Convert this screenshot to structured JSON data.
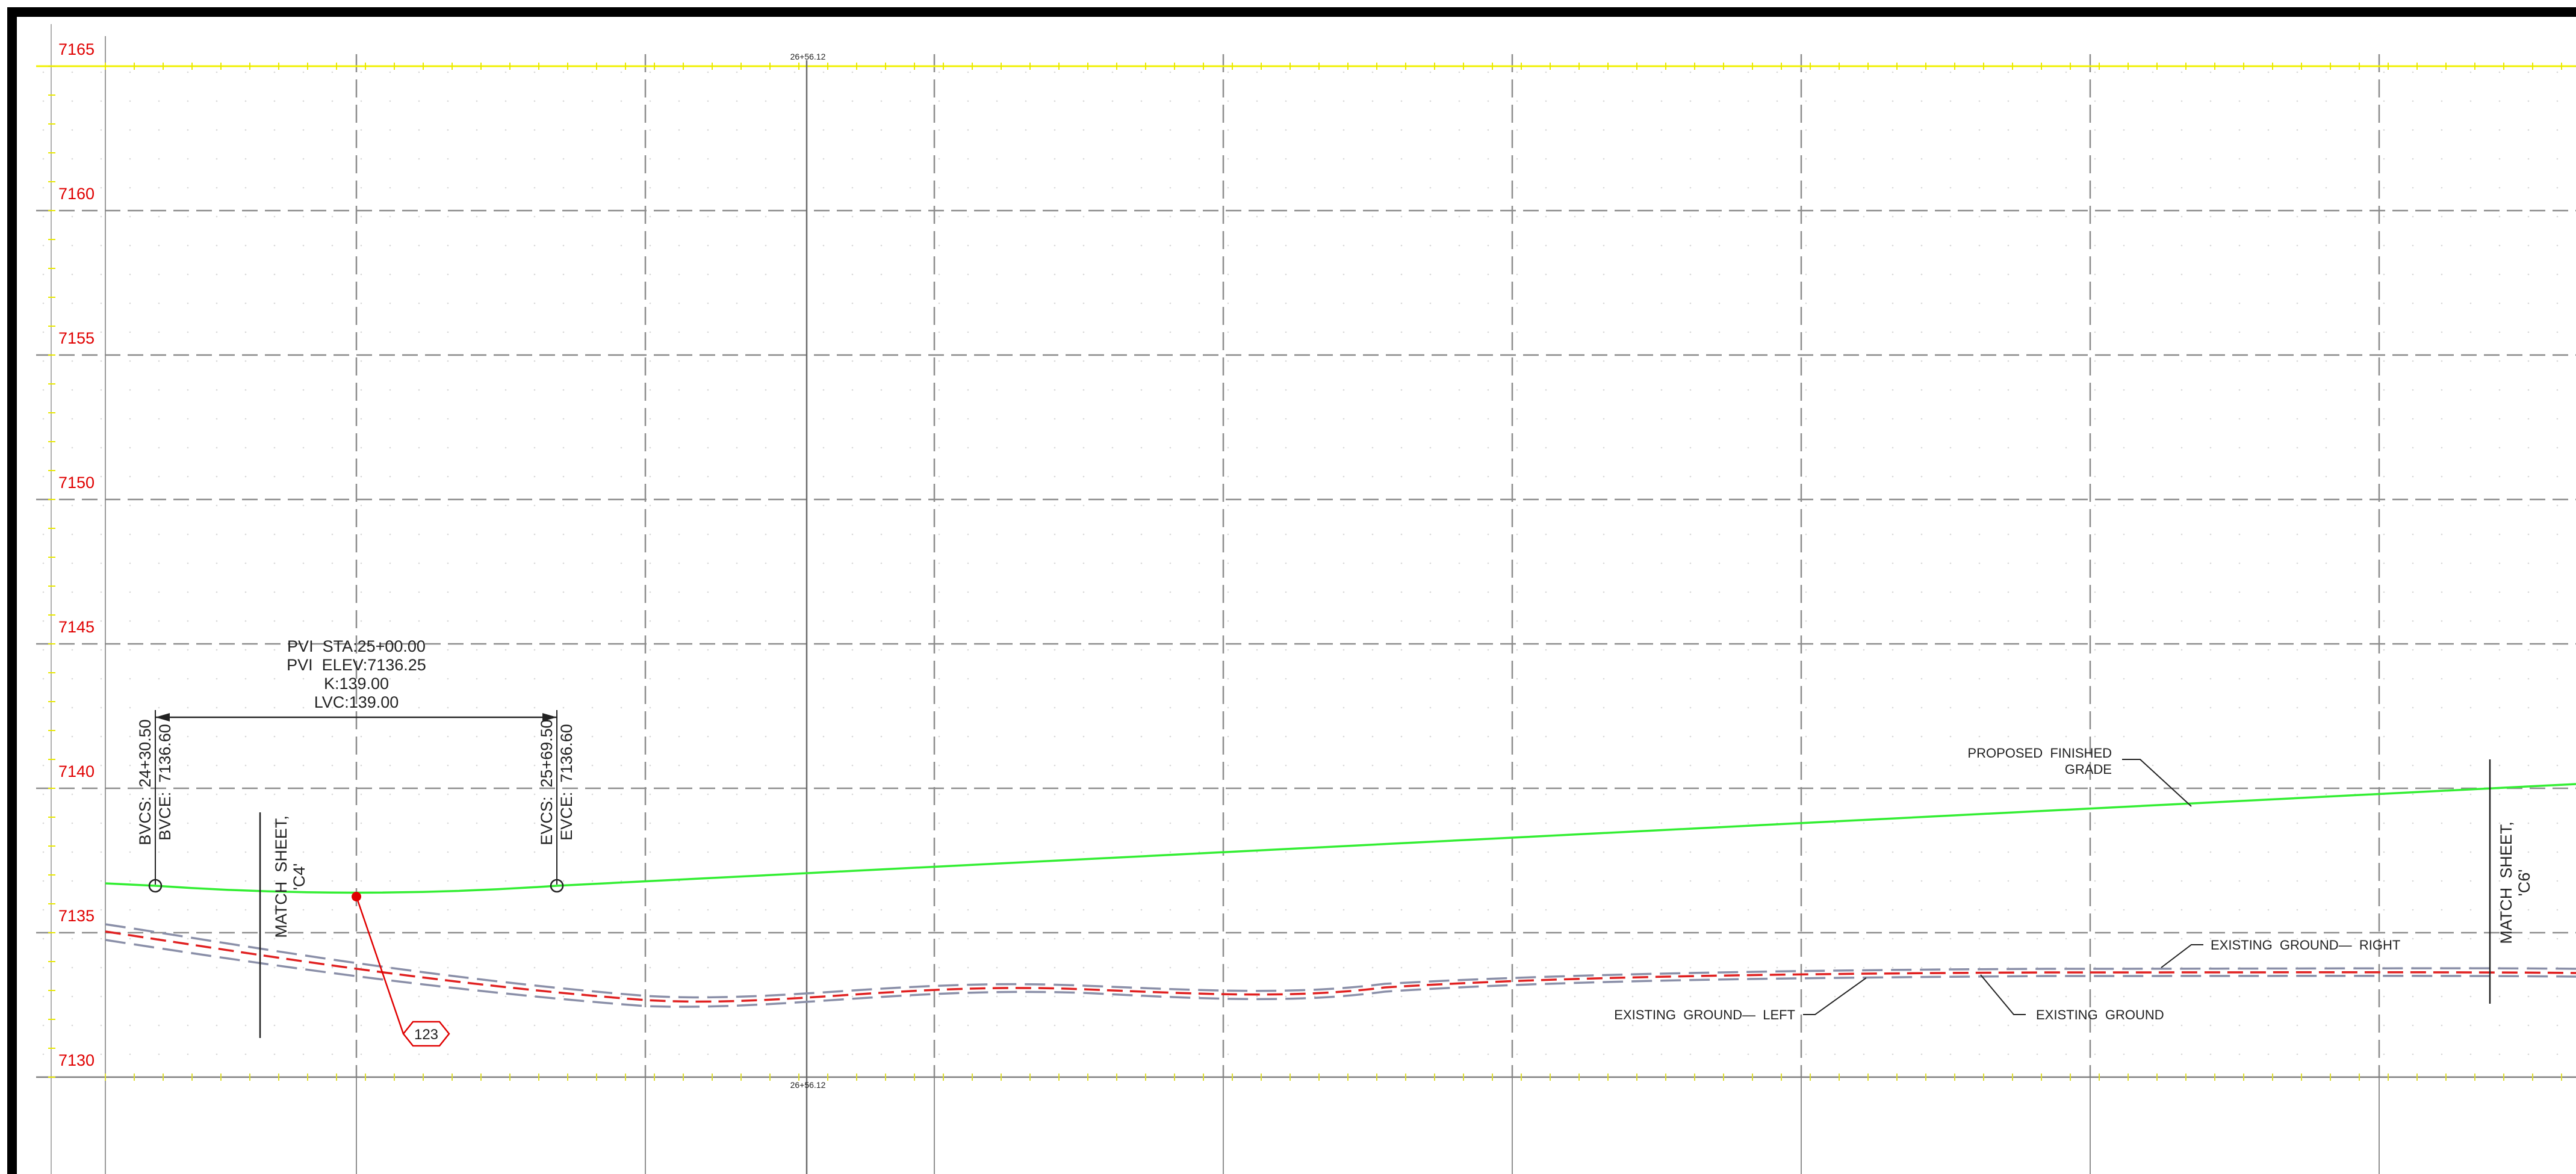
{
  "station_marker": {
    "label": "26+56.12"
  },
  "elevation_labels": [
    "7165",
    "7160",
    "7155",
    "7150",
    "7145",
    "7140",
    "7135",
    "7130"
  ],
  "curve": {
    "pvi_sta": "PVI  STA:25+00.00",
    "pvi_elev": "PVI  ELEV:7136.25",
    "k": "K:139.00",
    "lvc": "LVC:139.00",
    "bvcs": "BVCS:  24+30.50",
    "bvce": "BVCE:  7136.60",
    "evcs": "EVCS:  25+69.50",
    "evce": "EVCE:  7136.60"
  },
  "match_left": {
    "line1": "MATCH  SHEET,",
    "line2": "'C4'"
  },
  "match_right": {
    "line1": "MATCH  SHEET,",
    "line2": "'C6'"
  },
  "callouts": {
    "proposed_line1": "PROPOSED  FINISHED",
    "proposed_line2": "GRADE",
    "ground_right": "EXISTING  GROUND—  RIGHT",
    "ground_left": "EXISTING  GROUND—  LEFT",
    "ground": "EXISTING  GROUND"
  },
  "tag": "123",
  "colors": {
    "frame": "#000000",
    "grid_dashed": "#8c8c8c",
    "grid_solid": "#9a9a9a",
    "top_line": "#f0f000",
    "elevation_text": "#e00000",
    "proposed_grade": "#33ee33",
    "existing_ground_red": "#e02020",
    "existing_ground_gray": "#8a8fa8",
    "tag_red": "#e00000",
    "text": "#222222"
  }
}
